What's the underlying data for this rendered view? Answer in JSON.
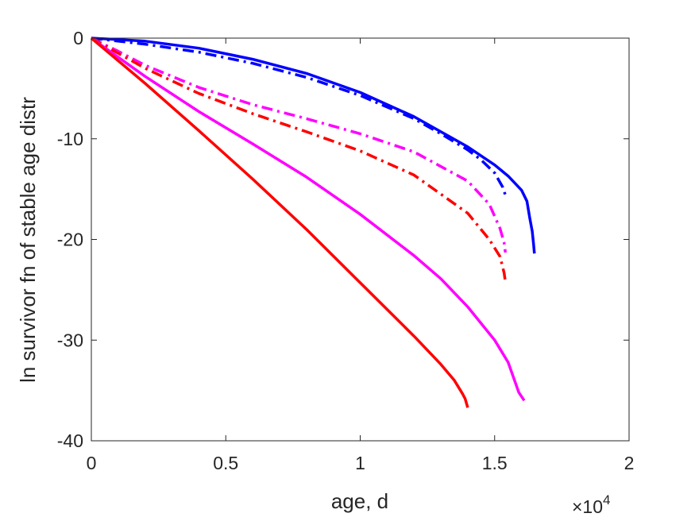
{
  "chart_data": {
    "type": "line",
    "xlabel": "age, d",
    "ylabel": "ln survivor fn of stable age distr",
    "x_exponent_label": {
      "times": "×10",
      "power": "4"
    },
    "xlim": [
      0,
      20000
    ],
    "ylim": [
      -40,
      0
    ],
    "xticks": [
      0,
      5000,
      10000,
      15000,
      20000
    ],
    "xtick_labels": [
      "0",
      "0.5",
      "1",
      "1.5",
      "2"
    ],
    "yticks": [
      0,
      -10,
      -20,
      -30,
      -40
    ],
    "ytick_labels": [
      "0",
      "-10",
      "-20",
      "-30",
      "-40"
    ],
    "grid": false,
    "box": true,
    "series": [
      {
        "color": "#0000ff",
        "style": "solid",
        "points": [
          [
            0,
            0
          ],
          [
            2000,
            -0.3
          ],
          [
            4000,
            -1.0
          ],
          [
            6000,
            -2.1
          ],
          [
            8000,
            -3.5
          ],
          [
            10000,
            -5.4
          ],
          [
            12000,
            -7.8
          ],
          [
            14000,
            -10.8
          ],
          [
            15000,
            -12.6
          ],
          [
            15500,
            -13.7
          ],
          [
            16000,
            -15.1
          ],
          [
            16200,
            -16.2
          ],
          [
            16300,
            -17.8
          ],
          [
            16400,
            -19.2
          ],
          [
            16450,
            -20.5
          ],
          [
            16480,
            -21.4
          ]
        ]
      },
      {
        "color": "#0000ff",
        "style": "dashdot",
        "points": [
          [
            0,
            0
          ],
          [
            2000,
            -0.6
          ],
          [
            4000,
            -1.4
          ],
          [
            6000,
            -2.5
          ],
          [
            8000,
            -3.9
          ],
          [
            10000,
            -5.7
          ],
          [
            12000,
            -8.0
          ],
          [
            13000,
            -9.5
          ],
          [
            14000,
            -11.1
          ],
          [
            14500,
            -12.1
          ],
          [
            15000,
            -13.4
          ],
          [
            15300,
            -14.8
          ],
          [
            15400,
            -15.6
          ]
        ]
      },
      {
        "color": "#ff00ff",
        "style": "dashdot",
        "points": [
          [
            0,
            0
          ],
          [
            1000,
            -1.3
          ],
          [
            2000,
            -2.7
          ],
          [
            4000,
            -4.9
          ],
          [
            6000,
            -6.6
          ],
          [
            8000,
            -8.0
          ],
          [
            10000,
            -9.5
          ],
          [
            12000,
            -11.3
          ],
          [
            14000,
            -14.2
          ],
          [
            14800,
            -16.5
          ],
          [
            15200,
            -18.9
          ],
          [
            15350,
            -20.3
          ],
          [
            15400,
            -21.3
          ]
        ]
      },
      {
        "color": "#ff0000",
        "style": "dashdot",
        "points": [
          [
            0,
            0
          ],
          [
            1000,
            -1.5
          ],
          [
            2000,
            -3.0
          ],
          [
            4000,
            -5.5
          ],
          [
            6000,
            -7.5
          ],
          [
            8000,
            -9.3
          ],
          [
            10000,
            -11.2
          ],
          [
            12000,
            -13.6
          ],
          [
            14000,
            -17.4
          ],
          [
            14800,
            -20.0
          ],
          [
            15200,
            -21.7
          ],
          [
            15350,
            -23.3
          ],
          [
            15400,
            -24.2
          ]
        ]
      },
      {
        "color": "#ff00ff",
        "style": "solid",
        "points": [
          [
            0,
            0
          ],
          [
            2000,
            -3.8
          ],
          [
            4000,
            -7.3
          ],
          [
            6000,
            -10.5
          ],
          [
            8000,
            -13.8
          ],
          [
            10000,
            -17.5
          ],
          [
            12000,
            -21.6
          ],
          [
            13000,
            -23.9
          ],
          [
            14000,
            -26.7
          ],
          [
            15000,
            -30.0
          ],
          [
            15500,
            -32.2
          ],
          [
            15900,
            -35.2
          ],
          [
            16100,
            -36.0
          ]
        ]
      },
      {
        "color": "#ff0000",
        "style": "solid",
        "points": [
          [
            0,
            0
          ],
          [
            2000,
            -4.5
          ],
          [
            4000,
            -9.2
          ],
          [
            6000,
            -14.0
          ],
          [
            8000,
            -19.0
          ],
          [
            10000,
            -24.3
          ],
          [
            12000,
            -29.6
          ],
          [
            13000,
            -32.4
          ],
          [
            13500,
            -34.0
          ],
          [
            13800,
            -35.3
          ],
          [
            13900,
            -35.8
          ],
          [
            14000,
            -36.7
          ]
        ]
      }
    ]
  }
}
